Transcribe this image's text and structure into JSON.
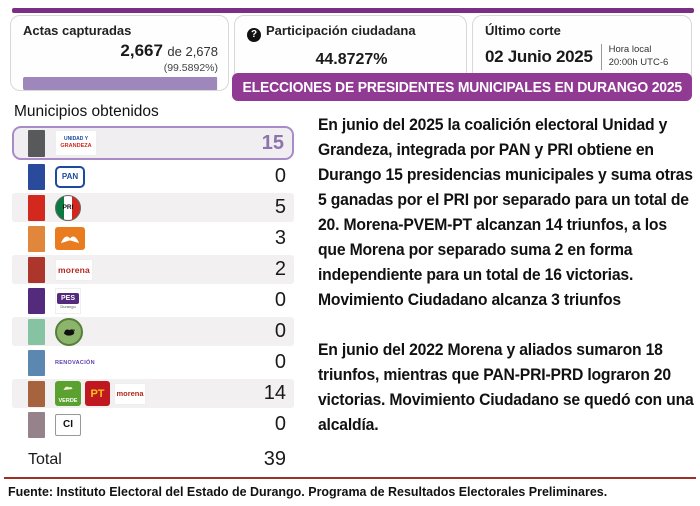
{
  "header": {
    "actas": {
      "title": "Actas capturadas",
      "value": "2,667",
      "of": "de 2,678",
      "percent": "(99.5892%)",
      "progress_percent": 99.5892,
      "bar_color": "#9d87bb"
    },
    "participacion": {
      "title": "Participación ciudadana",
      "help_icon_glyph": "?",
      "value": "44.8727%"
    },
    "corte": {
      "title": "Último corte",
      "date": "02 Junio 2025",
      "time_label": "Hora local",
      "time_value": "20:00h UTC-6"
    },
    "banner": "ELECCIONES DE PRESIDENTES MUNICIPALES EN DURANGO 2025",
    "banner_color": "#913a94",
    "top_line_color": "#7b2f84"
  },
  "results": {
    "title": "Municipios obtenidos",
    "rows": [
      {
        "party": "Unidad y Grandeza",
        "logo": "unidad-grandeza",
        "logo_lines": [
          "UNIDAD Y",
          "GRANDEZA"
        ],
        "value": "15",
        "bar_color": "#58595b",
        "highlighted": true
      },
      {
        "party": "PAN",
        "logo": "pan",
        "logo_text": "PAN",
        "value": "0",
        "bar_color": "#2a4b9b",
        "highlighted": false
      },
      {
        "party": "PRI",
        "logo": "pri",
        "logo_text": "PRI",
        "value": "5",
        "bar_color": "#d2281e",
        "highlighted": false
      },
      {
        "party": "Movimiento Ciudadano",
        "logo": "mc",
        "value": "3",
        "bar_color": "#e0873c",
        "highlighted": false
      },
      {
        "party": "Morena",
        "logo": "morena",
        "logo_text": "morena",
        "value": "2",
        "bar_color": "#ac352c",
        "highlighted": false
      },
      {
        "party": "PES Durango",
        "logo": "pes",
        "logo_text": "PES",
        "logo_sub": "Durango",
        "value": "0",
        "bar_color": "#542a7c",
        "highlighted": false
      },
      {
        "party": "Partido local (alacrán)",
        "logo": "alacran",
        "value": "0",
        "bar_color": "#85c3a2",
        "highlighted": false
      },
      {
        "party": "Renovación",
        "logo": "renovacion",
        "logo_text": "RENOVACIÓN",
        "value": "0",
        "bar_color": "#5b87b0",
        "highlighted": false
      },
      {
        "party": "Verde-PT-Morena",
        "logo": "coalition",
        "logos": [
          "VERDE",
          "PT",
          "morena"
        ],
        "value": "14",
        "bar_color": "#a6633d",
        "highlighted": false
      },
      {
        "party": "Candidatura Independiente",
        "logo": "ci",
        "logo_text": "CI",
        "value": "0",
        "bar_color": "#96828a",
        "highlighted": false
      }
    ],
    "total_label": "Total",
    "total_value": "39"
  },
  "narrative": {
    "p1": "En junio del 2025 la coalición electoral Unidad y Grandeza, integrada por PAN y PRI obtiene en Durango 15 presidencias municipales y suma otras 5 ganadas por el PRI por separado para un total de 20. Morena-PVEM-PT alcanzan 14 triunfos, a los que Morena por separado suma 2 en forma independiente para un total de 16 victorias. Movimiento Ciudadano alcanza 3 triunfos",
    "p2": "En junio del 2022 Morena y aliados sumaron 18 triunfos, mientras que PAN-PRI-PRD lograron 20 victorias. Movimiento Ciudadano se quedó con una alcaldía."
  },
  "footer": {
    "source": "Fuente: Instituto Electoral del Estado de Durango. Programa de Resultados Electorales Preliminares."
  }
}
